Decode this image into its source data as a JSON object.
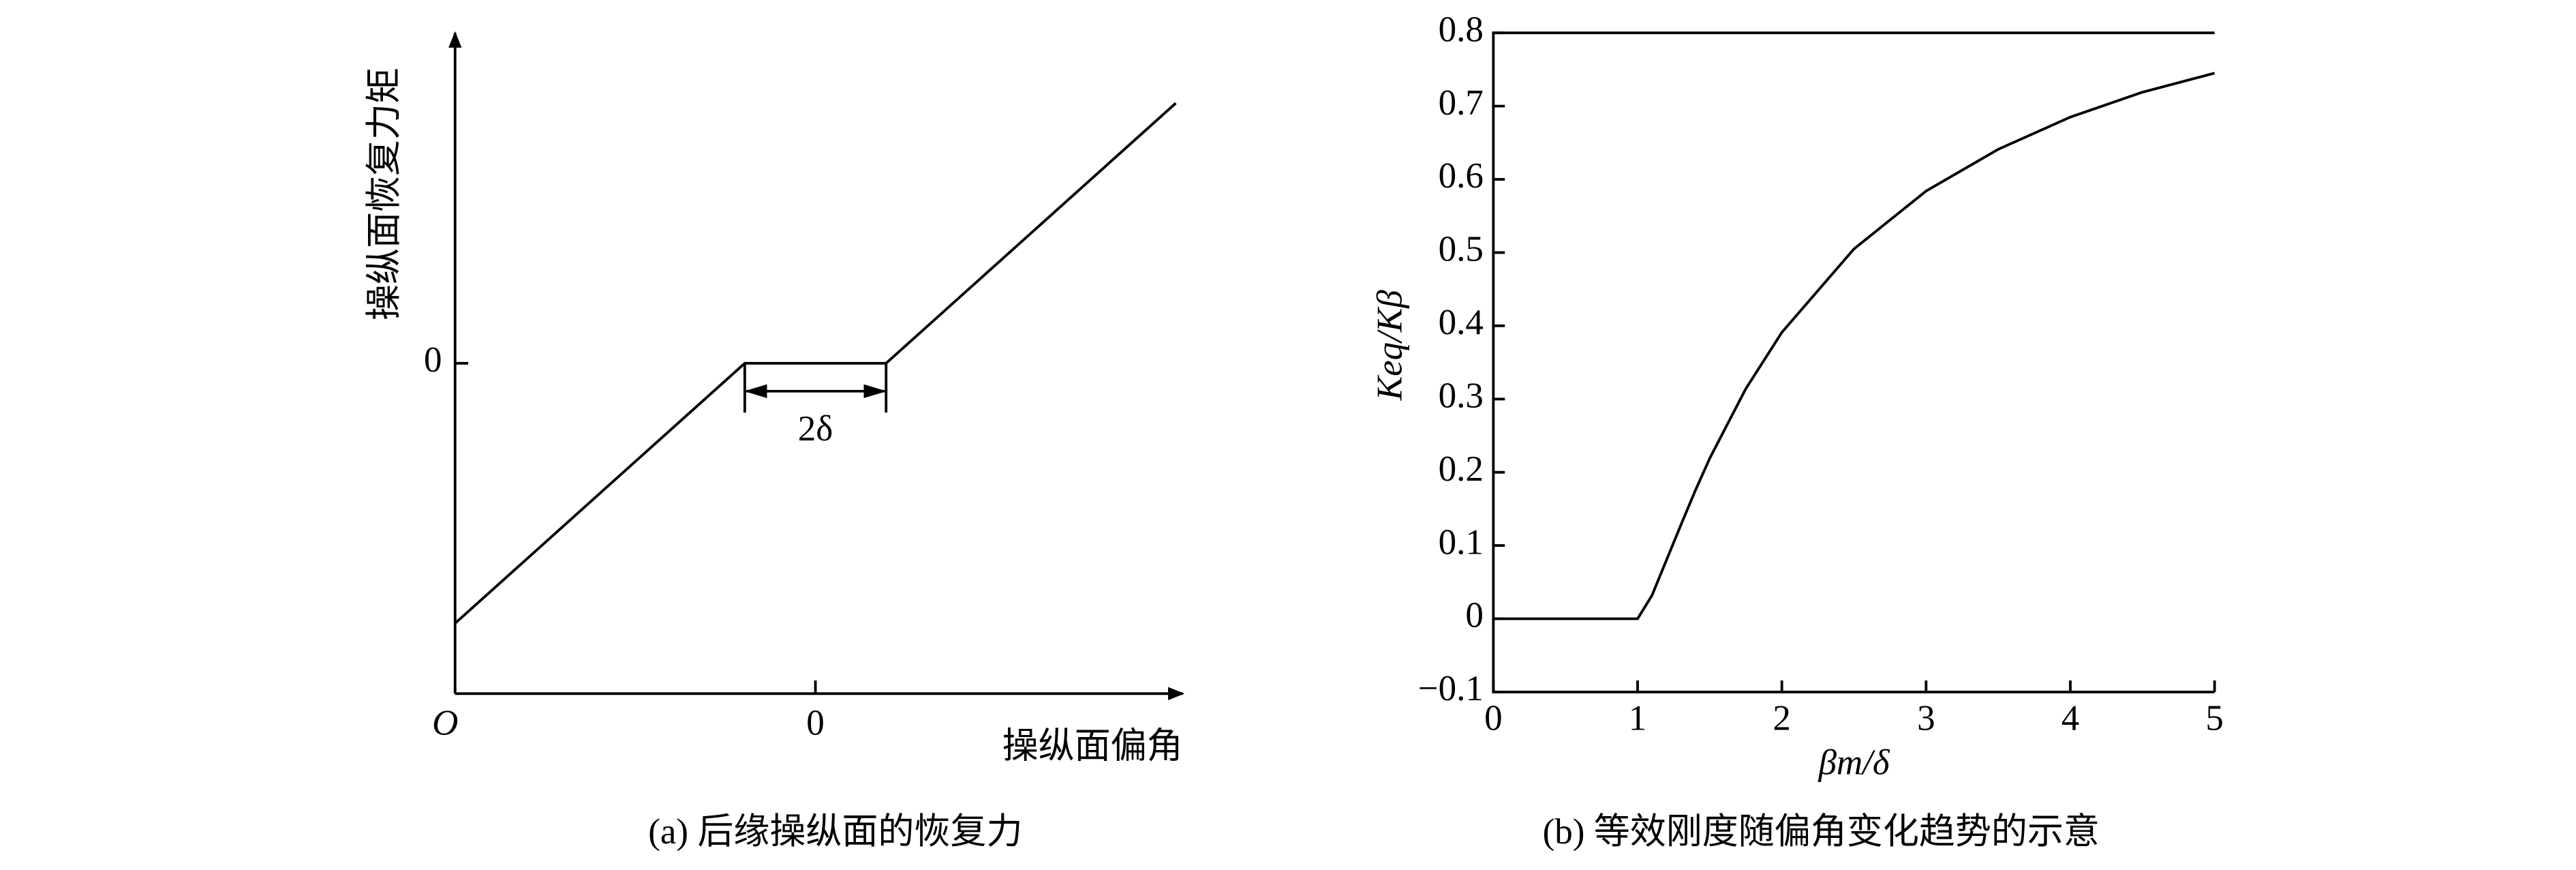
{
  "chart_data": [
    {
      "type": "line",
      "caption": "(a) 后缘操纵面的恢复力",
      "ylabel": "操纵面恢复力矩",
      "xlabel": "操纵面偏角",
      "origin_label": "O",
      "annotation": "2δ",
      "x": [
        -5.1,
        -1,
        1,
        5.1
      ],
      "values": [
        -3.7,
        0,
        0,
        3.7
      ],
      "color": "#000000",
      "xlim": [
        -5.1,
        5.2
      ],
      "ylim": [
        -4.7,
        4.7
      ],
      "xticks": [
        0
      ],
      "yticks": [
        0
      ]
    },
    {
      "type": "line",
      "caption": "(b) 等效刚度随偏角变化趋势的示意",
      "ylabel": "Keq/Kβ",
      "xlabel": "βm/δ",
      "x": [
        0,
        0.5,
        1,
        1.1,
        1.2,
        1.3,
        1.4,
        1.5,
        1.75,
        2,
        2.5,
        3,
        3.5,
        4,
        4.5,
        5
      ],
      "values": [
        0,
        0,
        0,
        0.032,
        0.08,
        0.128,
        0.175,
        0.219,
        0.314,
        0.391,
        0.505,
        0.584,
        0.641,
        0.685,
        0.719,
        0.745
      ],
      "color": "#000000",
      "xlim": [
        0,
        5
      ],
      "ylim": [
        -0.1,
        0.8
      ],
      "xticks": [
        0,
        1,
        2,
        3,
        4,
        5
      ],
      "yticks": [
        {
          "value": -0.1,
          "label": "−0.1"
        },
        0,
        0.1,
        0.2,
        0.3,
        0.4,
        0.5,
        0.6,
        0.7,
        0.8
      ]
    }
  ]
}
